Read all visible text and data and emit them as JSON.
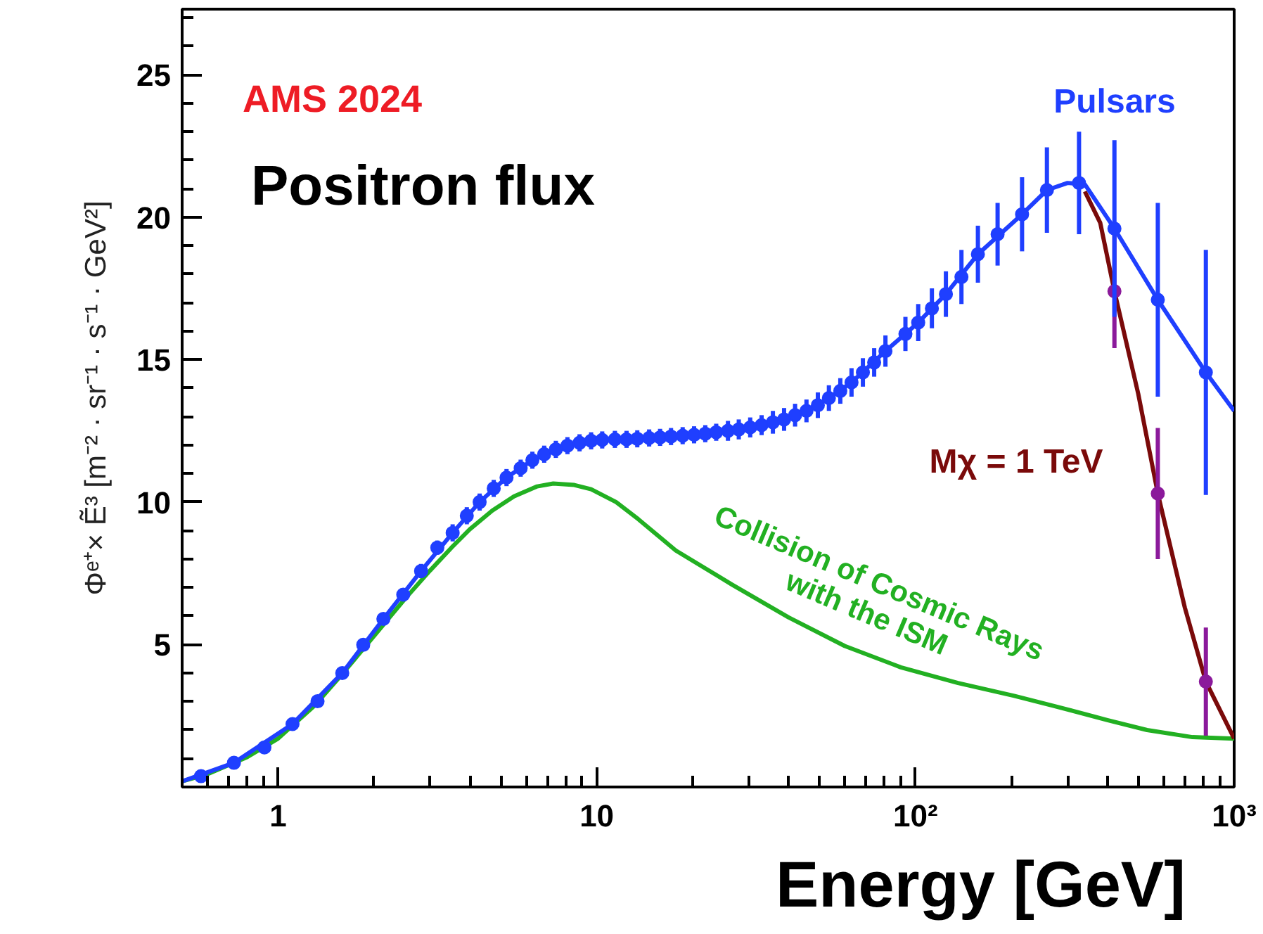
{
  "chart_data": {
    "type": "scatter",
    "xlabel": "Energy [GeV]",
    "ylabel": "Φᵉ⁺× Ẽ³ [m⁻² · sr⁻¹ · s⁻¹ · GeV²]",
    "annotations": [
      "AMS 2024",
      "Positron flux"
    ],
    "log": "x",
    "xlim": [
      0.5,
      1000
    ],
    "ylim": [
      0,
      27.3
    ],
    "xticks": [
      1,
      10,
      {
        "value": 100,
        "label": "10²"
      },
      {
        "value": 1000,
        "label": "10³"
      }
    ],
    "yticks": [
      5,
      10,
      15,
      20,
      25
    ],
    "grid": false,
    "series": [
      {
        "name": "Collision of Cosmic Rays with the ISM",
        "type": "line",
        "marker": "none",
        "color": "#22b022",
        "x": [
          0.5,
          0.6,
          0.8,
          1.0,
          1.3,
          1.6,
          2.0,
          2.5,
          3.0,
          3.5,
          4.0,
          4.7,
          5.5,
          6.5,
          7.3,
          8.5,
          9.6,
          11.5,
          13.5,
          17.7,
          26.6,
          40,
          60,
          90,
          136,
          204,
          271,
          400,
          533,
          740,
          1000
        ],
        "values": [
          0.2,
          0.45,
          1.05,
          1.7,
          2.85,
          4.0,
          5.3,
          6.6,
          7.6,
          8.4,
          9.05,
          9.7,
          10.2,
          10.55,
          10.65,
          10.6,
          10.45,
          10.0,
          9.4,
          8.3,
          7.1,
          5.95,
          4.95,
          4.2,
          3.65,
          3.2,
          2.85,
          2.35,
          2.0,
          1.75,
          1.7
        ]
      },
      {
        "name": "Mχ = 1 TeV",
        "type": "line",
        "marker": "none",
        "color": "#7a0a0a",
        "x": [
          340,
          380,
          421,
          500,
          576,
          700,
          815,
          1000
        ],
        "values": [
          20.9,
          19.8,
          17.4,
          13.8,
          10.3,
          6.3,
          3.7,
          1.7
        ]
      },
      {
        "name": "Pulsars",
        "type": "line",
        "marker": "none",
        "color": "#1f3fff",
        "x": [
          0.5,
          0.727,
          1.11,
          1.59,
          2.14,
          2.81,
          3.53,
          4.29,
          5.21,
          6.28,
          7.44,
          8.83,
          10.4,
          15.8,
          23.7,
          35.7,
          49.4,
          63,
          80.5,
          102,
          124.6,
          157,
          216,
          258.5,
          300,
          340,
          421,
          576,
          815,
          1000
        ],
        "values": [
          0.2,
          0.85,
          2.21,
          4.0,
          5.9,
          7.58,
          8.92,
          10.0,
          10.86,
          11.47,
          11.85,
          12.08,
          12.18,
          12.27,
          12.45,
          12.8,
          13.4,
          14.2,
          15.3,
          16.3,
          17.3,
          18.7,
          20.1,
          20.95,
          21.2,
          21.15,
          19.6,
          17.1,
          14.55,
          13.2
        ]
      },
      {
        "marker": "circle",
        "color": "#8b1a9b",
        "x": [
          421,
          576,
          815
        ],
        "values": [
          17.4,
          10.3,
          3.7
        ],
        "errors": [
          2.0,
          2.3,
          1.9
        ]
      },
      {
        "marker": "circle",
        "color": "#1f3fff",
        "x": [
          0.573,
          0.727,
          0.906,
          1.11,
          1.33,
          1.59,
          1.85,
          2.14,
          2.47,
          2.81,
          3.16,
          3.53,
          3.91,
          4.29,
          4.75,
          5.21,
          5.77,
          6.28,
          6.84,
          7.44,
          8.09,
          8.83,
          9.6,
          10.4,
          11.4,
          12.4,
          13.4,
          14.6,
          15.8,
          17.1,
          18.6,
          20.2,
          21.9,
          23.7,
          25.8,
          27.9,
          30.3,
          32.9,
          35.7,
          38.7,
          41.9,
          45.5,
          49.4,
          53.5,
          58.1,
          63,
          68.4,
          74.2,
          80.5,
          93,
          102,
          112.6,
          124.6,
          139.4,
          157,
          181,
          216,
          258.5,
          326,
          421,
          576,
          815
        ],
        "values": [
          0.38,
          0.85,
          1.39,
          2.21,
          3.01,
          4.0,
          4.99,
          5.9,
          6.75,
          7.58,
          8.4,
          8.92,
          9.52,
          10.0,
          10.48,
          10.86,
          11.19,
          11.47,
          11.68,
          11.85,
          11.98,
          12.08,
          12.15,
          12.18,
          12.2,
          12.2,
          12.22,
          12.25,
          12.27,
          12.3,
          12.33,
          12.36,
          12.4,
          12.45,
          12.5,
          12.55,
          12.62,
          12.7,
          12.8,
          12.9,
          13.05,
          13.2,
          13.4,
          13.65,
          13.9,
          14.2,
          14.55,
          14.9,
          15.3,
          15.9,
          16.3,
          16.8,
          17.3,
          17.9,
          18.7,
          19.4,
          20.1,
          20.95,
          21.2,
          19.6,
          17.1,
          14.55
        ],
        "errors": [
          null,
          null,
          null,
          null,
          null,
          null,
          null,
          0.2,
          0.2,
          0.25,
          0.25,
          0.3,
          0.3,
          0.3,
          0.3,
          0.3,
          0.3,
          0.3,
          0.3,
          0.3,
          0.3,
          0.3,
          0.3,
          0.3,
          0.3,
          0.3,
          0.3,
          0.3,
          0.3,
          0.3,
          0.3,
          0.3,
          0.3,
          0.3,
          0.35,
          0.35,
          0.35,
          0.35,
          0.4,
          0.4,
          0.4,
          0.4,
          0.45,
          0.45,
          0.45,
          0.5,
          0.5,
          0.5,
          0.55,
          0.6,
          0.65,
          0.7,
          0.8,
          0.95,
          1.0,
          1.1,
          1.3,
          1.5,
          1.8,
          3.1,
          3.4,
          4.3
        ]
      }
    ]
  }
}
